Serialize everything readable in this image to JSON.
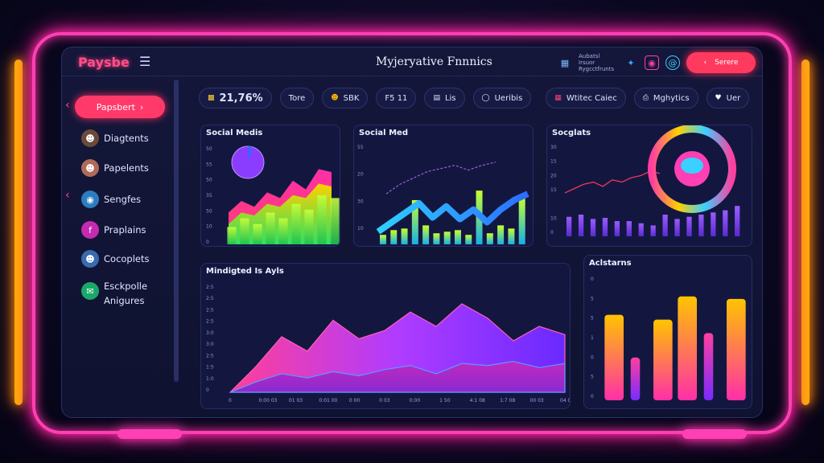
{
  "app": {
    "logo": "Paysbe",
    "title": "Myjeryative Fnnnics",
    "info_line1": "Aubatsl Irsuor",
    "info_line2": "Rygcctfrunts",
    "search_label": "Serere"
  },
  "colors": {
    "accent_pink": "#ff3fb4",
    "accent_red": "#ff3a5e",
    "accent_orange": "#ffb300",
    "accent_purple": "#8b3dff",
    "accent_cyan": "#3ad0ff"
  },
  "sidebar": {
    "primary": "Papsbert",
    "items": [
      {
        "label": "Diagtents",
        "icon": "profile-icon"
      },
      {
        "label": "Papelents",
        "icon": "profile-icon"
      },
      {
        "label": "Sengfes",
        "icon": "globe-icon"
      },
      {
        "label": "Praplains",
        "icon": "facebook-icon"
      },
      {
        "label": "Cocoplets",
        "icon": "profile-icon"
      },
      {
        "label": "Esckpolle",
        "label2": "Anigures",
        "icon": "message-icon"
      }
    ]
  },
  "stats": [
    {
      "value": "21,76%",
      "icon": "wallet-icon"
    },
    {
      "label": "Tore",
      "icon": ""
    },
    {
      "label": "SBK",
      "icon": "user-icon"
    },
    {
      "label": "F5 11",
      "icon": ""
    },
    {
      "label": "Lis",
      "icon": "document-icon"
    },
    {
      "label": "Ueribis",
      "icon": "shield-icon"
    },
    {
      "label": "Wtitec Caiec",
      "icon": "grid-icon"
    },
    {
      "label": "Mghytics",
      "icon": "printer-icon"
    },
    {
      "label": "Uer",
      "icon": "heart-icon"
    }
  ],
  "chart_data": [
    {
      "type": "area",
      "title": "Social Medis",
      "ylabel_ticks": [
        "50",
        "55",
        "50",
        "35",
        "50",
        "10",
        "0"
      ],
      "x": [
        0,
        1,
        2,
        3,
        4,
        5,
        6,
        7,
        8
      ],
      "series": [
        {
          "values": [
            22,
            30,
            26,
            36,
            32,
            44,
            38,
            52,
            50
          ]
        },
        {
          "values": [
            14,
            22,
            20,
            28,
            26,
            34,
            32,
            42,
            40
          ]
        }
      ],
      "bars": [
        12,
        18,
        14,
        22,
        18,
        28,
        24,
        34,
        32
      ],
      "ylim": [
        0,
        60
      ]
    },
    {
      "type": "bar",
      "title": "Social Med",
      "ylabel_ticks": [
        "55",
        "",
        "20",
        "",
        "30",
        "",
        "10",
        ""
      ],
      "values": [
        6,
        9,
        10,
        28,
        12,
        7,
        8,
        9,
        6,
        34,
        7,
        12,
        10,
        30
      ],
      "line": [
        8,
        14,
        20,
        26,
        17,
        24,
        16,
        22,
        14,
        22,
        28,
        32
      ],
      "dashed": [
        32,
        38,
        42,
        46,
        48,
        50,
        47,
        50,
        52
      ],
      "ylim": [
        0,
        60
      ]
    },
    {
      "type": "bar",
      "title": "Socglats",
      "ylabel_ticks": [
        "30",
        "15",
        "20",
        "15",
        "",
        "10",
        "0"
      ],
      "values": [
        18,
        20,
        16,
        17,
        14,
        14,
        12,
        10,
        20,
        16,
        18,
        20,
        22,
        24,
        28
      ],
      "line": [
        40,
        44,
        48,
        50,
        46,
        52,
        50,
        54,
        56,
        60,
        58
      ],
      "ylim": [
        0,
        80
      ]
    },
    {
      "type": "area",
      "title": "Mindigted Is Ayls",
      "ylabel_ticks": [
        "2:5",
        "2:5",
        "2:5",
        "2:5",
        "3:0",
        "3:0",
        "2:5",
        "1:5",
        "1:0",
        "0"
      ],
      "xtick_labels": [
        "0",
        "0:00 03",
        "01 03",
        "0:01 00",
        "0 00",
        "0 03",
        "0:00",
        "1 50",
        "4:1 08",
        "1:7 08",
        "00 03",
        "04 03"
      ],
      "series": [
        {
          "values": [
            0,
            25,
            54,
            40,
            70,
            52,
            60,
            78,
            64,
            86,
            72,
            50,
            64,
            56
          ]
        },
        {
          "values": [
            0,
            10,
            18,
            14,
            20,
            16,
            22,
            26,
            18,
            28,
            26,
            30,
            24,
            28
          ]
        }
      ],
      "ylim": [
        0,
        100
      ]
    },
    {
      "type": "bar",
      "title": "Aclstarns",
      "ylabel_ticks": [
        "0",
        "5",
        "5",
        "1",
        "0",
        "5",
        "0"
      ],
      "values": [
        70,
        35,
        66,
        85,
        55,
        83
      ],
      "ylim": [
        0,
        100
      ]
    }
  ]
}
